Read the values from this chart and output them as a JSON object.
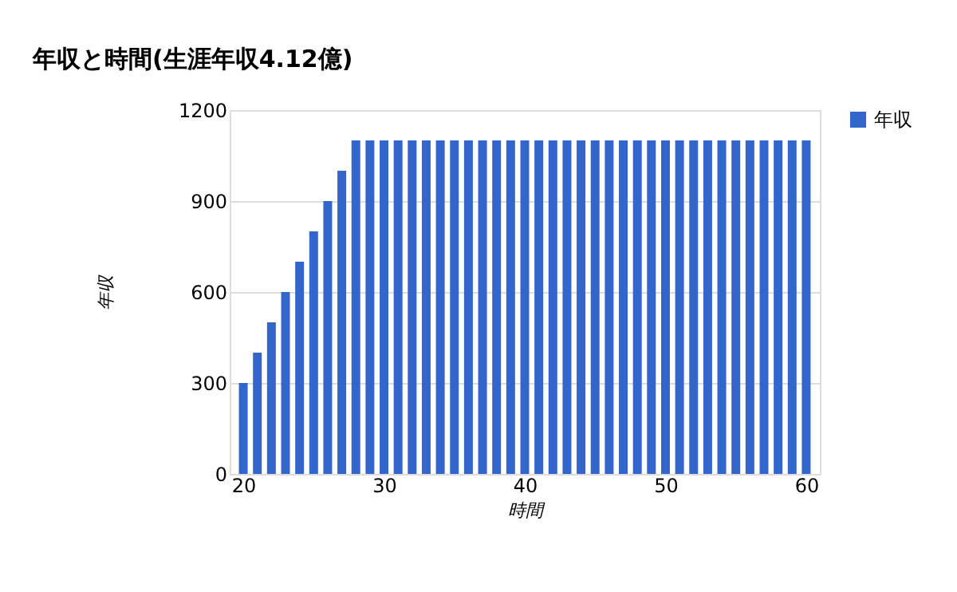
{
  "chart_data": {
    "type": "bar",
    "title": "年収と時間(生涯年収4.12億)",
    "xlabel": "時間",
    "ylabel": "年収",
    "x": [
      20,
      21,
      22,
      23,
      24,
      25,
      26,
      27,
      28,
      29,
      30,
      31,
      32,
      33,
      34,
      35,
      36,
      37,
      38,
      39,
      40,
      41,
      42,
      43,
      44,
      45,
      46,
      47,
      48,
      49,
      50,
      51,
      52,
      53,
      54,
      55,
      56,
      57,
      58,
      59,
      60
    ],
    "series": [
      {
        "name": "年収",
        "color": "#3366cc",
        "values": [
          300,
          400,
          500,
          600,
          700,
          800,
          900,
          1000,
          1100,
          1100,
          1100,
          1100,
          1100,
          1100,
          1100,
          1100,
          1100,
          1100,
          1100,
          1100,
          1100,
          1100,
          1100,
          1100,
          1100,
          1100,
          1100,
          1100,
          1100,
          1100,
          1100,
          1100,
          1100,
          1100,
          1100,
          1100,
          1100,
          1100,
          1100,
          1100,
          1100
        ]
      }
    ],
    "xlim": [
      19.6,
      60.4
    ],
    "xticks": [
      20,
      30,
      40,
      50,
      60
    ],
    "ylim": [
      0,
      1200
    ],
    "yticks": [
      0,
      300,
      600,
      900,
      1200
    ],
    "grid": "y",
    "legend": "top right"
  }
}
